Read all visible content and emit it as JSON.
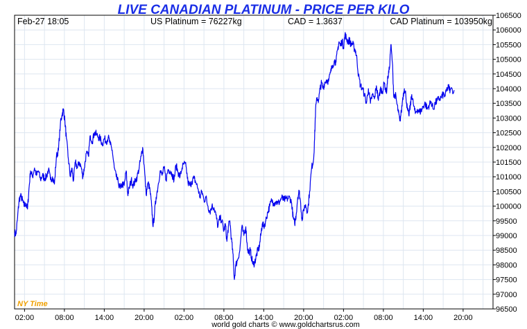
{
  "colors": {
    "title": "#1a2ee6",
    "line": "#0000ee",
    "grid": "#dde6f0",
    "frame": "#000000",
    "timezone": "#f0a000"
  },
  "header": {
    "date_time": "Feb-27  18:05",
    "us_platinum": "US Platinum = 76227kg",
    "cad_rate": "CAD = 1.3637",
    "cad_platinum": "CAD Platinum = 103950kg"
  },
  "timezone_label": "NY Time",
  "footer": {
    "credit": "world gold charts © www.goldchartsrus.com"
  },
  "chart_data": {
    "type": "line",
    "title": "LIVE CANADIAN PLATINUM - PRICE PER KILO",
    "xlabel": "",
    "ylabel": "",
    "grid": true,
    "xlim": [
      0,
      48
    ],
    "ylim": [
      96500,
      106500
    ],
    "y_ticks": [
      96500,
      97000,
      97500,
      98000,
      98500,
      99000,
      99500,
      100000,
      100500,
      101000,
      101500,
      102000,
      102500,
      103000,
      103500,
      104000,
      104500,
      105000,
      105500,
      106000,
      106500
    ],
    "x_ticks": [
      {
        "x": 1,
        "label": "02:00"
      },
      {
        "x": 5,
        "label": "08:00"
      },
      {
        "x": 9,
        "label": "14:00"
      },
      {
        "x": 13,
        "label": "20:00"
      },
      {
        "x": 17,
        "label": "02:00"
      },
      {
        "x": 21,
        "label": "08:00"
      },
      {
        "x": 25,
        "label": "14:00"
      },
      {
        "x": 29,
        "label": "20:00"
      },
      {
        "x": 33,
        "label": "02:00"
      },
      {
        "x": 37,
        "label": "08:00"
      },
      {
        "x": 41,
        "label": "14:00"
      },
      {
        "x": 45,
        "label": "20:00"
      }
    ],
    "series": [
      {
        "values": [
          [
            0.0,
            99100
          ],
          [
            0.15,
            99050
          ],
          [
            0.3,
            99600
          ],
          [
            0.45,
            100200
          ],
          [
            0.6,
            100350
          ],
          [
            0.8,
            100200
          ],
          [
            0.95,
            100000
          ],
          [
            1.1,
            100100
          ],
          [
            1.3,
            99900
          ],
          [
            1.45,
            100600
          ],
          [
            1.6,
            101200
          ],
          [
            1.8,
            101000
          ],
          [
            2.0,
            101300
          ],
          [
            2.2,
            101050
          ],
          [
            2.4,
            101200
          ],
          [
            2.6,
            100900
          ],
          [
            2.8,
            101050
          ],
          [
            3.0,
            100950
          ],
          [
            3.2,
            101000
          ],
          [
            3.4,
            101250
          ],
          [
            3.6,
            100900
          ],
          [
            3.8,
            101000
          ],
          [
            4.0,
            100750
          ],
          [
            4.2,
            101700
          ],
          [
            4.4,
            101900
          ],
          [
            4.6,
            102800
          ],
          [
            4.75,
            103100
          ],
          [
            4.9,
            103300
          ],
          [
            5.05,
            102900
          ],
          [
            5.2,
            102300
          ],
          [
            5.4,
            101600
          ],
          [
            5.6,
            101000
          ],
          [
            5.75,
            101300
          ],
          [
            5.9,
            100850
          ],
          [
            6.1,
            101500
          ],
          [
            6.3,
            101300
          ],
          [
            6.5,
            101500
          ],
          [
            6.7,
            101300
          ],
          [
            6.85,
            101000
          ],
          [
            7.0,
            101300
          ],
          [
            7.2,
            101800
          ],
          [
            7.4,
            101700
          ],
          [
            7.6,
            102400
          ],
          [
            7.8,
            102200
          ],
          [
            8.0,
            102500
          ],
          [
            8.2,
            102450
          ],
          [
            8.4,
            102350
          ],
          [
            8.6,
            102300
          ],
          [
            8.8,
            102100
          ],
          [
            9.0,
            102300
          ],
          [
            9.2,
            102200
          ],
          [
            9.4,
            102350
          ],
          [
            9.6,
            102100
          ],
          [
            9.8,
            101900
          ],
          [
            10.0,
            101300
          ],
          [
            10.2,
            101000
          ],
          [
            10.4,
            100800
          ],
          [
            10.6,
            100600
          ],
          [
            10.8,
            100750
          ],
          [
            11.0,
            100700
          ],
          [
            11.2,
            101200
          ],
          [
            11.35,
            100400
          ],
          [
            11.5,
            100600
          ],
          [
            11.7,
            100900
          ],
          [
            11.9,
            100700
          ],
          [
            12.1,
            100850
          ],
          [
            12.3,
            101000
          ],
          [
            12.5,
            101300
          ],
          [
            12.7,
            101700
          ],
          [
            12.85,
            102000
          ],
          [
            13.0,
            101400
          ],
          [
            13.2,
            100400
          ],
          [
            13.4,
            100800
          ],
          [
            13.6,
            100500
          ],
          [
            13.75,
            100000
          ],
          [
            13.9,
            99300
          ],
          [
            14.05,
            99800
          ],
          [
            14.2,
            100300
          ],
          [
            14.4,
            100700
          ],
          [
            14.6,
            101200
          ],
          [
            14.8,
            101050
          ],
          [
            15.0,
            101300
          ],
          [
            15.2,
            100900
          ],
          [
            15.4,
            101250
          ],
          [
            15.6,
            101200
          ],
          [
            15.8,
            101100
          ],
          [
            16.0,
            100900
          ],
          [
            16.2,
            101400
          ],
          [
            16.4,
            101150
          ],
          [
            16.6,
            101000
          ],
          [
            16.8,
            101300
          ],
          [
            17.0,
            101450
          ],
          [
            17.2,
            101350
          ],
          [
            17.4,
            100800
          ],
          [
            17.6,
            100700
          ],
          [
            17.8,
            100850
          ],
          [
            18.0,
            100950
          ],
          [
            18.2,
            100800
          ],
          [
            18.4,
            100600
          ],
          [
            18.6,
            100300
          ],
          [
            18.8,
            100500
          ],
          [
            19.0,
            100200
          ],
          [
            19.2,
            100300
          ],
          [
            19.4,
            100000
          ],
          [
            19.6,
            99800
          ],
          [
            19.8,
            100000
          ],
          [
            20.0,
            99950
          ],
          [
            20.2,
            99700
          ],
          [
            20.4,
            99300
          ],
          [
            20.6,
            99600
          ],
          [
            20.8,
            99500
          ],
          [
            21.0,
            99150
          ],
          [
            21.15,
            99400
          ],
          [
            21.3,
            98800
          ],
          [
            21.45,
            99300
          ],
          [
            21.6,
            99500
          ],
          [
            21.75,
            98900
          ],
          [
            21.9,
            98400
          ],
          [
            22.05,
            97500
          ],
          [
            22.2,
            98000
          ],
          [
            22.4,
            98200
          ],
          [
            22.6,
            98500
          ],
          [
            22.8,
            99300
          ],
          [
            23.0,
            99000
          ],
          [
            23.2,
            99300
          ],
          [
            23.35,
            98600
          ],
          [
            23.5,
            98400
          ],
          [
            23.65,
            98500
          ],
          [
            23.8,
            98200
          ],
          [
            23.95,
            98000
          ],
          [
            24.1,
            98100
          ],
          [
            24.25,
            98300
          ],
          [
            24.4,
            98500
          ],
          [
            24.55,
            98600
          ],
          [
            24.7,
            99000
          ],
          [
            24.85,
            99400
          ],
          [
            25.0,
            99300
          ],
          [
            25.2,
            99500
          ],
          [
            25.4,
            99800
          ],
          [
            25.6,
            100000
          ],
          [
            25.8,
            100200
          ],
          [
            26.0,
            100100
          ],
          [
            26.2,
            100150
          ],
          [
            26.4,
            100100
          ],
          [
            26.6,
            100150
          ],
          [
            26.8,
            100300
          ],
          [
            27.0,
            100200
          ],
          [
            27.2,
            100250
          ],
          [
            27.4,
            100250
          ],
          [
            27.6,
            100300
          ],
          [
            27.8,
            100100
          ],
          [
            27.95,
            99600
          ],
          [
            28.1,
            99400
          ],
          [
            28.25,
            99700
          ],
          [
            28.4,
            100300
          ],
          [
            28.55,
            100500
          ],
          [
            28.7,
            100100
          ],
          [
            28.85,
            99500
          ],
          [
            29.0,
            99900
          ],
          [
            29.2,
            100050
          ],
          [
            29.4,
            99800
          ],
          [
            29.6,
            100500
          ],
          [
            29.8,
            101300
          ],
          [
            30.0,
            101600
          ],
          [
            30.1,
            102300
          ],
          [
            30.2,
            103300
          ],
          [
            30.35,
            103700
          ],
          [
            30.5,
            103600
          ],
          [
            30.65,
            104000
          ],
          [
            30.8,
            104200
          ],
          [
            30.95,
            104000
          ],
          [
            31.1,
            104200
          ],
          [
            31.3,
            104300
          ],
          [
            31.5,
            104250
          ],
          [
            31.7,
            104550
          ],
          [
            31.9,
            104800
          ],
          [
            32.1,
            104950
          ],
          [
            32.25,
            104900
          ],
          [
            32.4,
            105300
          ],
          [
            32.55,
            105600
          ],
          [
            32.7,
            105450
          ],
          [
            32.85,
            105650
          ],
          [
            33.0,
            105400
          ],
          [
            33.15,
            105850
          ],
          [
            33.3,
            105700
          ],
          [
            33.45,
            105600
          ],
          [
            33.6,
            105650
          ],
          [
            33.75,
            105500
          ],
          [
            33.9,
            105550
          ],
          [
            34.05,
            105400
          ],
          [
            34.2,
            105300
          ],
          [
            34.35,
            105000
          ],
          [
            34.5,
            104450
          ],
          [
            34.7,
            104100
          ],
          [
            34.9,
            104000
          ],
          [
            35.1,
            103800
          ],
          [
            35.3,
            103500
          ],
          [
            35.5,
            104000
          ],
          [
            35.7,
            103500
          ],
          [
            35.9,
            103800
          ],
          [
            36.1,
            103650
          ],
          [
            36.3,
            104100
          ],
          [
            36.5,
            103600
          ],
          [
            36.7,
            104000
          ],
          [
            36.9,
            103900
          ],
          [
            37.1,
            104200
          ],
          [
            37.3,
            103850
          ],
          [
            37.45,
            104400
          ],
          [
            37.6,
            104650
          ],
          [
            37.75,
            105500
          ],
          [
            37.9,
            104900
          ],
          [
            38.05,
            103700
          ],
          [
            38.2,
            103800
          ],
          [
            38.35,
            103500
          ],
          [
            38.5,
            103200
          ],
          [
            38.65,
            102900
          ],
          [
            38.8,
            103200
          ],
          [
            38.95,
            103700
          ],
          [
            39.1,
            104000
          ],
          [
            39.25,
            103800
          ],
          [
            39.4,
            103300
          ],
          [
            39.55,
            103100
          ],
          [
            39.7,
            103400
          ],
          [
            39.85,
            103800
          ],
          [
            40.0,
            103500
          ],
          [
            40.2,
            103150
          ],
          [
            40.4,
            103300
          ],
          [
            40.6,
            103200
          ],
          [
            40.8,
            103250
          ],
          [
            41.0,
            103400
          ],
          [
            41.2,
            103500
          ],
          [
            41.4,
            103300
          ],
          [
            41.6,
            103450
          ],
          [
            41.8,
            103550
          ],
          [
            42.0,
            103300
          ],
          [
            42.2,
            103500
          ],
          [
            42.4,
            103600
          ],
          [
            42.6,
            103650
          ],
          [
            42.8,
            103700
          ],
          [
            43.0,
            103800
          ],
          [
            43.2,
            103750
          ],
          [
            43.4,
            104000
          ],
          [
            43.55,
            104050
          ],
          [
            43.7,
            103950
          ],
          [
            44.1,
            103950
          ]
        ]
      }
    ]
  }
}
